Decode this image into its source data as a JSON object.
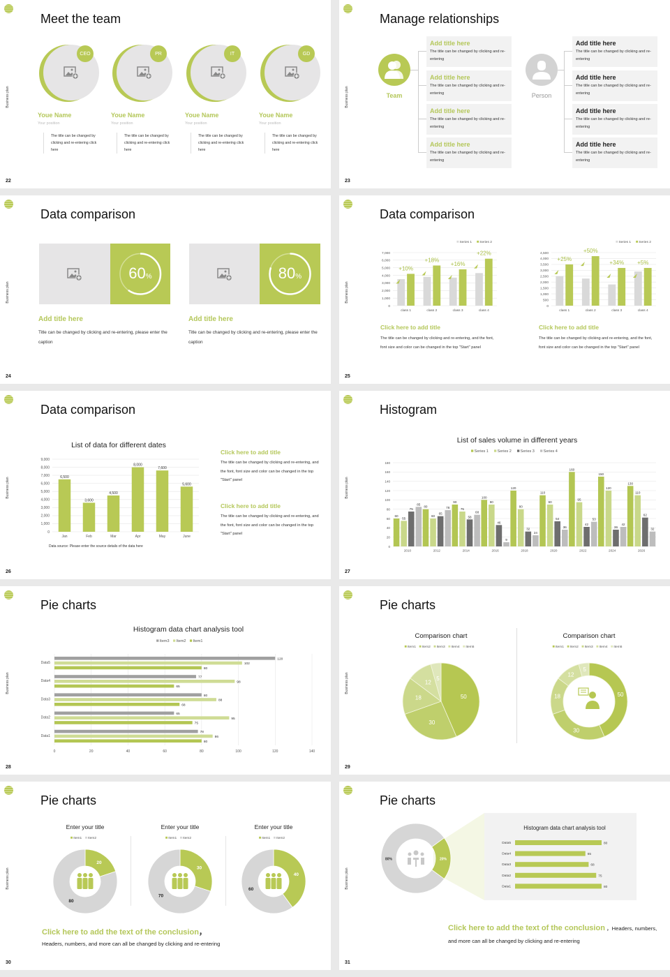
{
  "common": {
    "side_label": "Business plan"
  },
  "colors": {
    "green": "#b8c955",
    "light_green": "#cfdc95",
    "dark_gray": "#6e6e6e",
    "light_gray": "#c8c8c8",
    "panel_gray": "#f2f2f2"
  },
  "slides": [
    {
      "number": "22",
      "title": "Meet the team",
      "members": [
        {
          "badge": "CEO",
          "name": "Youe Name",
          "position": "Your position",
          "desc": "The title can be changed by clicking and re-entering click here"
        },
        {
          "badge": "PR",
          "name": "Youe Name",
          "position": "Your position",
          "desc": "The title can be changed by clicking and re-entering click here"
        },
        {
          "badge": "IT",
          "name": "Youe Name",
          "position": "Your position",
          "desc": "The title can be changed by clicking and re-entering click here"
        },
        {
          "badge": "GD",
          "name": "Youe Name",
          "position": "Your position",
          "desc": "The title can be changed by clicking and re-entering click here"
        }
      ]
    },
    {
      "number": "23",
      "title": "Manage relationships",
      "team": {
        "label": "Team",
        "items": [
          {
            "title": "Add title here",
            "desc": "The title can be changed by clicking and re-entering"
          },
          {
            "title": "Add title here",
            "desc": "The title can be changed by clicking and re-entering"
          },
          {
            "title": "Add title here",
            "desc": "The title can be changed by clicking and re-entering"
          },
          {
            "title": "Add title here",
            "desc": "The title can be changed by clicking and re-entering"
          }
        ]
      },
      "person": {
        "label": "Person",
        "items": [
          {
            "title": "Add title here",
            "desc": "The title can be changed by clicking and re-entering"
          },
          {
            "title": "Add title here",
            "desc": "The title can be changed by clicking and re-entering"
          },
          {
            "title": "Add title here",
            "desc": "The title can be changed by clicking and re-entering"
          },
          {
            "title": "Add title here",
            "desc": "The title can be changed by clicking and re-entering"
          }
        ]
      }
    },
    {
      "number": "24",
      "title": "Data comparison",
      "cards": [
        {
          "percent": 60,
          "value": "60",
          "unit": "%",
          "title": "Add title here",
          "desc": "Title can be changed by clicking and re-entering, please enter the caption"
        },
        {
          "percent": 80,
          "value": "80",
          "unit": "%",
          "title": "Add title here",
          "desc": "Title can be changed by clicking and re-entering, please enter the caption"
        }
      ]
    },
    {
      "number": "25",
      "title": "Data comparison",
      "panels": [
        {
          "title": "Click here to add title",
          "desc": "The title can be changed by clicking and re-entering, and the font, font size and color can be changed in the top \"Start\" panel"
        },
        {
          "title": "Click here to add title",
          "desc": "The title can be changed by clicking and re-entering, and the font, font size and color can be changed in the top \"Start\" panel"
        }
      ]
    },
    {
      "number": "26",
      "title": "Data comparison",
      "panels": [
        {
          "title": "Click here to add title",
          "desc": "The title can be changed by clicking and re-entering, and the font, font size and color can be changed in the top \"Start\" panel"
        },
        {
          "title": "Click here to add title",
          "desc": "The title can be changed by clicking and re-entering, and the font, font size and color can be changed in the top \"Start\" panel"
        }
      ]
    },
    {
      "number": "27",
      "title": "Histogram"
    },
    {
      "number": "28",
      "title": "Pie charts"
    },
    {
      "number": "29",
      "title": "Pie charts"
    },
    {
      "number": "30",
      "title": "Pie charts",
      "conclusion": "Click here to add the text of the conclusion",
      "conclusion_sep": "，",
      "desc": "Headers, numbers, and more can all be changed by clicking and re-entering"
    },
    {
      "number": "31",
      "title": "Pie charts",
      "conclusion": "Click here to add the text of the conclusion",
      "desc": "，Headers, numbers, and more can all be changed by clicking and re-entering"
    }
  ],
  "chart_data": [
    {
      "type": "bar",
      "categories": [
        "class 1",
        "class 2",
        "class 3",
        "class 4"
      ],
      "series": [
        {
          "name": "Series 1",
          "values": [
            3500,
            3800,
            3700,
            4300
          ]
        },
        {
          "name": "Series 2",
          "values": [
            4200,
            5300,
            4800,
            6200
          ]
        }
      ],
      "annotations": [
        "+10%",
        "+18%",
        "+16%",
        "+22%"
      ],
      "ylim": [
        0,
        7000
      ],
      "ystep": 1000,
      "grid": true,
      "legend": "top-right"
    },
    {
      "type": "bar",
      "categories": [
        "class 1",
        "class 2",
        "class 3",
        "class 4"
      ],
      "series": [
        {
          "name": "Series 1",
          "values": [
            2500,
            2300,
            1800,
            2900
          ]
        },
        {
          "name": "Series 2",
          "values": [
            3500,
            4200,
            3200,
            3200
          ]
        }
      ],
      "annotations": [
        "+25%",
        "+50%",
        "+34%",
        "+5%"
      ],
      "ylim": [
        0,
        4500
      ],
      "ystep": 500,
      "grid": true,
      "legend": "top-right"
    },
    {
      "type": "bar",
      "title": "List of data for different dates",
      "categories": [
        "Jan",
        "Feb",
        "Mar",
        "Apr",
        "May",
        "June"
      ],
      "values": [
        6500,
        3600,
        4500,
        8000,
        7600,
        5600
      ],
      "ylim": [
        0,
        9000
      ],
      "ystep": 1000,
      "grid": true,
      "note": "Data source: Please enter the source details of the data here"
    },
    {
      "type": "bar",
      "title": "List of sales volume in different years",
      "categories": [
        "2010",
        "2012",
        "2014",
        "2016",
        "2018",
        "2020",
        "2022",
        "2024",
        "2026"
      ],
      "series": [
        {
          "name": "Series 1",
          "values": [
            60,
            80,
            90,
            100,
            120,
            110,
            160,
            150,
            130
          ]
        },
        {
          "name": "Series 2",
          "values": [
            55,
            60,
            75,
            90,
            80,
            90,
            95,
            120,
            110
          ]
        },
        {
          "name": "Series 3",
          "values": [
            75,
            65,
            58,
            46,
            32,
            54,
            42,
            36,
            62
          ]
        },
        {
          "name": "Series 4",
          "values": [
            85,
            78,
            68,
            9,
            24,
            36,
            53,
            42,
            32
          ]
        }
      ],
      "ylim": [
        0,
        180
      ],
      "ystep": 20,
      "grid": true,
      "legend": "top"
    },
    {
      "type": "bar",
      "orientation": "horizontal",
      "title": "Histogram data chart analysis tool",
      "categories": [
        "Data1",
        "Data2",
        "Data3",
        "Data4",
        "Data5"
      ],
      "series": [
        {
          "name": "Item1",
          "values": [
            80,
            75,
            68,
            65,
            80
          ]
        },
        {
          "name": "Item2",
          "values": [
            86,
            95,
            88,
            98,
            102
          ]
        },
        {
          "name": "Item3",
          "values": [
            78,
            65,
            80,
            77,
            120
          ]
        }
      ],
      "legend_order": [
        "Item3",
        "Item2",
        "Item1"
      ],
      "xlim": [
        0,
        140
      ],
      "xstep": 20,
      "grid": true,
      "legend": "top"
    },
    {
      "type": "pie",
      "title": "Comparison chart",
      "labels": [
        "Item1",
        "Item2",
        "Item3",
        "Item4",
        "Item5"
      ],
      "values": [
        50,
        30,
        18,
        12,
        5
      ],
      "legend": "top"
    },
    {
      "type": "pie",
      "variant": "donut",
      "title": "Comparison chart",
      "labels": [
        "Item1",
        "Item2",
        "Item3",
        "Item4",
        "Item5"
      ],
      "values": [
        50,
        30,
        18,
        12,
        5
      ],
      "legend": "top",
      "center_icon": "presenter-icon"
    },
    {
      "type": "pie",
      "variant": "donut",
      "title": "Enter your title",
      "labels": [
        "Item1",
        "Item2"
      ],
      "values": [
        20,
        80
      ],
      "legend": "top",
      "center_icon": "team-icon"
    },
    {
      "type": "pie",
      "variant": "donut",
      "title": "Enter your title",
      "labels": [
        "Item1",
        "Item2"
      ],
      "values": [
        30,
        70
      ],
      "legend": "top",
      "center_icon": "team-icon"
    },
    {
      "type": "pie",
      "variant": "donut",
      "title": "Enter your title",
      "labels": [
        "Item1",
        "Item2"
      ],
      "values": [
        40,
        60
      ],
      "legend": "top",
      "center_icon": "team-icon"
    },
    {
      "type": "pie",
      "variant": "donut",
      "values": [
        20,
        80
      ],
      "value_labels": [
        "20%",
        "80%"
      ],
      "center_icon": "meeting-icon"
    },
    {
      "type": "bar",
      "orientation": "horizontal",
      "title": "Histogram data chart analysis tool",
      "categories": [
        "Data5",
        "Data4",
        "Data3",
        "Data2",
        "Data1"
      ],
      "values": [
        80,
        65,
        68,
        75,
        80
      ],
      "xlim": [
        0,
        100
      ]
    }
  ]
}
